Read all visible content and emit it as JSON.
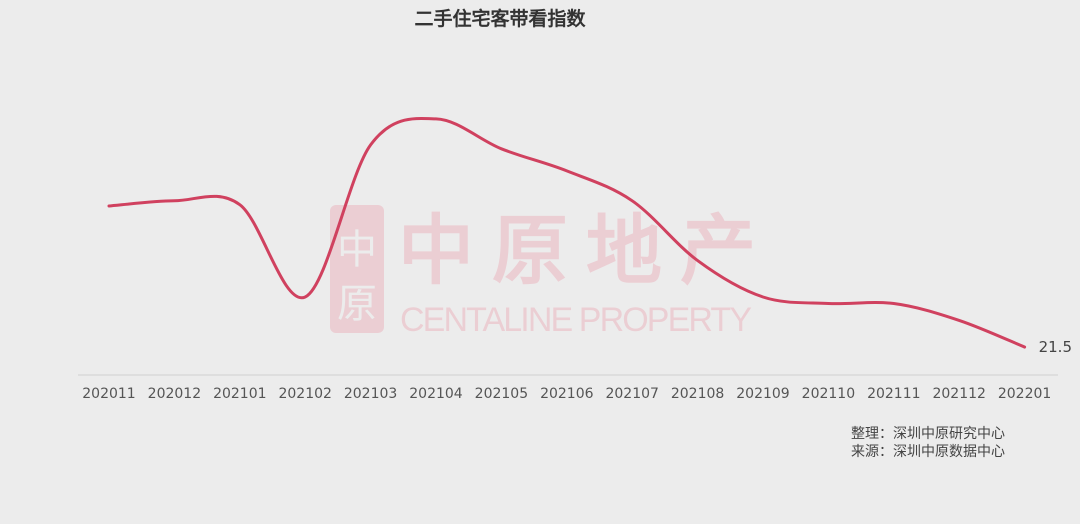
{
  "chart_data": {
    "type": "line",
    "title": "二手住宅客带看指数",
    "categories": [
      "202011",
      "202012",
      "202101",
      "202102",
      "202103",
      "202104",
      "202105",
      "202106",
      "202107",
      "202108",
      "202109",
      "202110",
      "202111",
      "202112",
      "202201"
    ],
    "series": [
      {
        "values": [
          130,
          134,
          131,
          60,
          177,
          197,
          174,
          157,
          134,
          88,
          60,
          55,
          55,
          42,
          21.5
        ],
        "color": "#d0415f"
      }
    ],
    "data_labels": {
      "last": "21.5"
    },
    "xlabel": "",
    "ylabel": "",
    "ylim": [
      0,
      200
    ],
    "grid": false,
    "y_axis_visible": false,
    "legend": "none"
  },
  "watermark": {
    "cn": "中原地产",
    "en": "CENTALINE PROPERTY",
    "color": "#e8667f"
  },
  "source": {
    "line1": "整理：深圳中原研究中心",
    "line2": "来源：深圳中原数据中心"
  }
}
